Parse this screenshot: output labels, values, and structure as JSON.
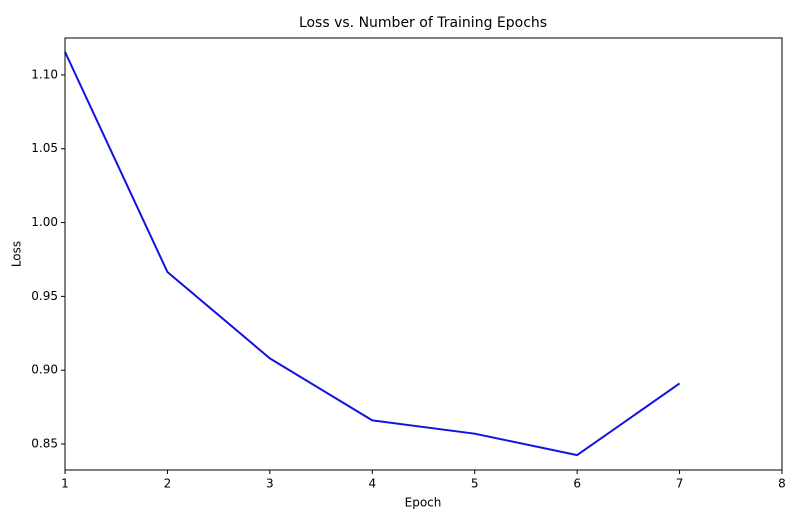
{
  "chart_data": {
    "type": "line",
    "title": "Loss vs. Number of Training Epochs",
    "x_label": "Epoch",
    "y_label": "Loss",
    "x": [
      1,
      2,
      3,
      4,
      5,
      6,
      7
    ],
    "series": [
      {
        "color": "#1212e0",
        "values": [
          1.1156,
          0.9665,
          0.908,
          0.866,
          0.857,
          0.8425,
          0.891
        ]
      }
    ],
    "xlim": [
      1,
      8
    ],
    "xticks": [
      1,
      2,
      3,
      4,
      5,
      6,
      7,
      8
    ],
    "ylim": [
      0.8324,
      1.125
    ],
    "yticks": [
      0.85,
      {
        "value": 0.9,
        "label": "0.90"
      },
      0.95,
      {
        "value": 1.0,
        "label": "1.00"
      },
      1.05,
      {
        "value": 1.1,
        "label": "1.10"
      }
    ],
    "grid": false
  }
}
